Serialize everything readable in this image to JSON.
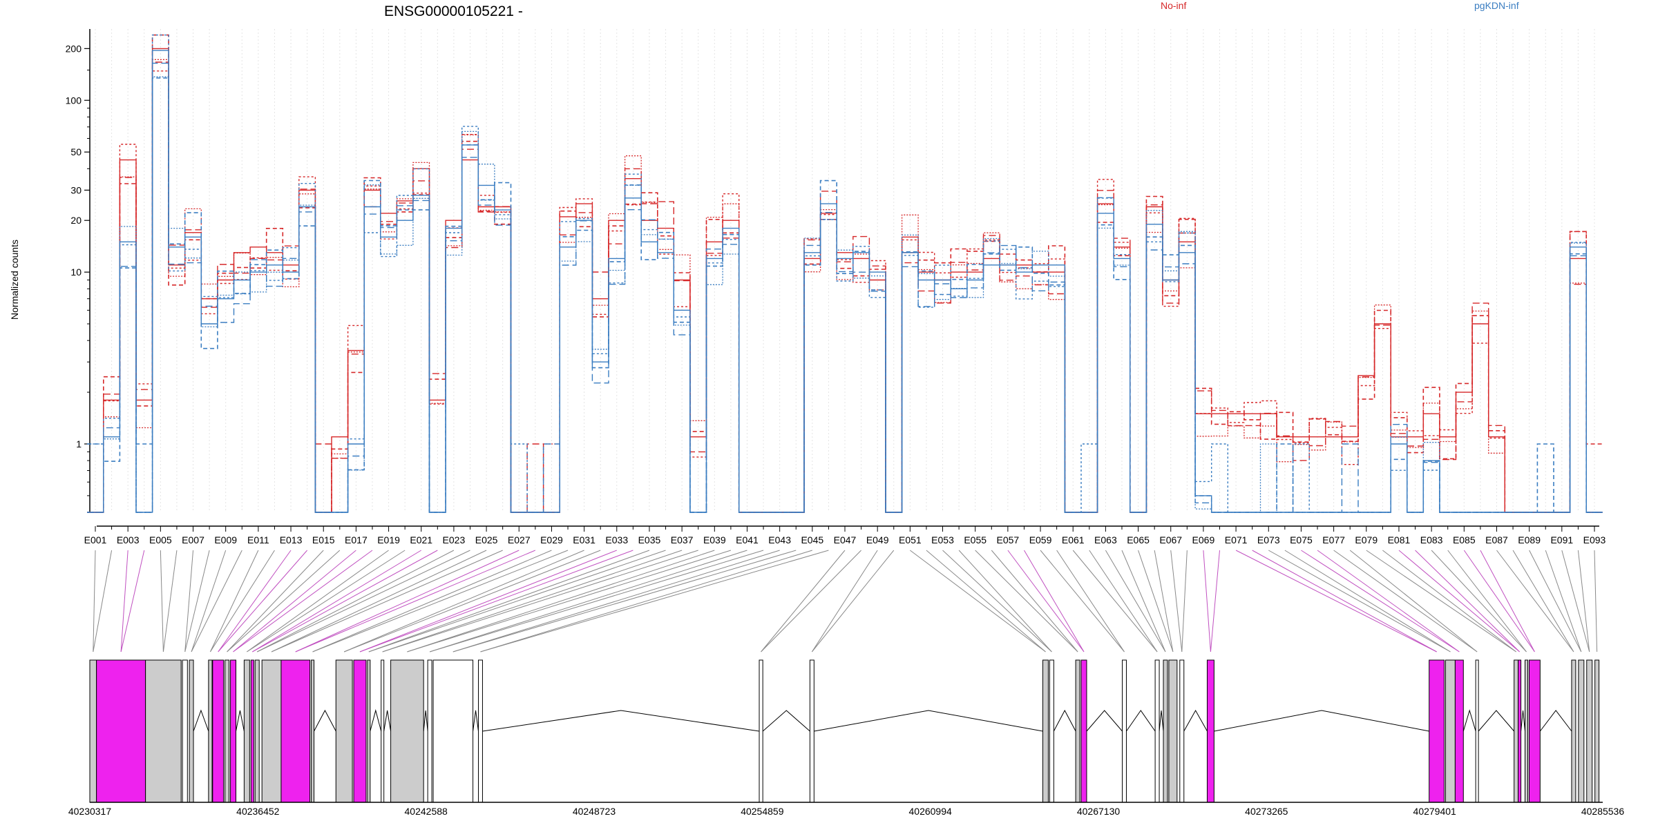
{
  "title": "ENSG00000105221 -",
  "chart_data": {
    "type": "line",
    "title": "ENSG00000105221 -",
    "ylabel": "Normalized counts",
    "y_scale": "log",
    "ylim": [
      0.4,
      260
    ],
    "yticks": [
      1,
      10,
      20,
      30,
      50,
      100,
      200
    ],
    "grid": "vertical dotted lines per exon",
    "legend": [
      {
        "name": "No-inf",
        "color": "#d62728"
      },
      {
        "name": "pgKDN-inf",
        "color": "#3a7dc1"
      }
    ],
    "exon_labels": [
      "E001",
      "E003",
      "E005",
      "E007",
      "E009",
      "E011",
      "E013",
      "E015",
      "E017",
      "E019",
      "E021",
      "E023",
      "E025",
      "E027",
      "E029",
      "E031",
      "E033",
      "E035",
      "E037",
      "E039",
      "E041",
      "E043",
      "E045",
      "E047",
      "E049",
      "E051",
      "E053",
      "E055",
      "E057",
      "E059",
      "E061",
      "E063",
      "E065",
      "E067",
      "E069",
      "E071",
      "E073",
      "E075",
      "E077",
      "E079",
      "E081",
      "E083",
      "E085",
      "E087",
      "E089",
      "E091",
      "E093"
    ],
    "exon_count": 93,
    "no_inf_mean": [
      0.4,
      1.8,
      45,
      1.8,
      200,
      11,
      17,
      7,
      9,
      13,
      14,
      13,
      11,
      30,
      0.4,
      1.1,
      3.5,
      30,
      22,
      26,
      40,
      1.8,
      20,
      45,
      24,
      24,
      0.4,
      0.4,
      0.4,
      21,
      25,
      7,
      20,
      35,
      20,
      18,
      9,
      1.1,
      15,
      20,
      0.4,
      0.4,
      0.4,
      0.4,
      12,
      22,
      13,
      12,
      9,
      0.4,
      16,
      10,
      9,
      10,
      10,
      12,
      11,
      11,
      10,
      10,
      0.4,
      0.4,
      25,
      14,
      0.4,
      24,
      9,
      15,
      1.5,
      1.5,
      1.5,
      1.5,
      1.5,
      1.1,
      1.1,
      1.1,
      1.1,
      1.1,
      2.5,
      5,
      1.1,
      1.1,
      1.5,
      1.1,
      2,
      5,
      1.1,
      0.4,
      0.4,
      0.4,
      0.4,
      12,
      0.4
    ],
    "pgkdn_inf_mean": [
      0.4,
      1.1,
      15,
      0.4,
      195,
      14,
      16,
      5,
      7,
      9,
      10,
      11,
      10,
      24,
      0.4,
      0.4,
      1,
      24,
      16,
      20,
      28,
      0.4,
      18,
      55,
      32,
      23,
      0.4,
      0.4,
      0.4,
      14,
      20,
      3,
      12,
      27,
      15,
      13,
      6,
      0.4,
      12,
      18,
      0.4,
      0.4,
      0.4,
      0.4,
      13,
      25,
      12,
      13,
      10,
      0.4,
      13,
      9,
      9,
      8,
      9,
      11,
      11,
      10,
      11,
      11,
      0.4,
      0.4,
      22,
      12,
      0.4,
      19,
      9,
      13,
      0.5,
      0.4,
      0.4,
      0.4,
      0.4,
      0.4,
      0.4,
      0.4,
      0.4,
      0.4,
      0.4,
      0.4,
      1,
      0.4,
      0.8,
      0.4,
      0.4,
      0.4,
      0.4,
      0.4,
      0.4,
      0.4,
      0.4,
      14,
      0.4
    ]
  },
  "genomic_axis": {
    "ticks": [
      "40230317",
      "40236452",
      "40242588",
      "40248723",
      "40254859",
      "40260994",
      "40267130",
      "40273265",
      "40279401",
      "40285536"
    ],
    "start": 40230317,
    "end": 40285536
  },
  "gene_model": {
    "blocks": [
      {
        "start": 40230317,
        "end": 40230560,
        "fill": "#cccccc"
      },
      {
        "start": 40230560,
        "end": 40232350,
        "fill": "#ee22ee"
      },
      {
        "start": 40232350,
        "end": 40233650,
        "fill": "#cccccc"
      },
      {
        "start": 40233700,
        "end": 40233880,
        "fill": "#ffffff"
      },
      {
        "start": 40233950,
        "end": 40234100,
        "fill": "#cccccc"
      },
      {
        "start": 40234650,
        "end": 40234780,
        "fill": "#cccccc"
      },
      {
        "start": 40234800,
        "end": 40235200,
        "fill": "#ee22ee"
      },
      {
        "start": 40235250,
        "end": 40235400,
        "fill": "#cccccc"
      },
      {
        "start": 40235450,
        "end": 40235650,
        "fill": "#ee22ee"
      },
      {
        "start": 40235950,
        "end": 40236150,
        "fill": "#cccccc"
      },
      {
        "start": 40236200,
        "end": 40236300,
        "fill": "#ee22ee"
      },
      {
        "start": 40236350,
        "end": 40236500,
        "fill": "#cccccc"
      },
      {
        "start": 40236600,
        "end": 40237300,
        "fill": "#cccccc"
      },
      {
        "start": 40237300,
        "end": 40238350,
        "fill": "#ee22ee"
      },
      {
        "start": 40238400,
        "end": 40238500,
        "fill": "#cccccc"
      },
      {
        "start": 40239300,
        "end": 40239900,
        "fill": "#cccccc"
      },
      {
        "start": 40239950,
        "end": 40240400,
        "fill": "#ee22ee"
      },
      {
        "start": 40240450,
        "end": 40240550,
        "fill": "#cccccc"
      },
      {
        "start": 40240950,
        "end": 40241050,
        "fill": "#ffffff"
      },
      {
        "start": 40241300,
        "end": 40242500,
        "fill": "#cccccc"
      },
      {
        "start": 40242650,
        "end": 40242800,
        "fill": "#ffffff"
      },
      {
        "start": 40242850,
        "end": 40244300,
        "fill": "#ffffff"
      },
      {
        "start": 40244500,
        "end": 40244650,
        "fill": "#ffffff"
      },
      {
        "start": 40254750,
        "end": 40254880,
        "fill": "#ffffff"
      },
      {
        "start": 40256600,
        "end": 40256750,
        "fill": "#ffffff"
      },
      {
        "start": 40265100,
        "end": 40265300,
        "fill": "#cccccc"
      },
      {
        "start": 40265350,
        "end": 40265500,
        "fill": "#ffffff"
      },
      {
        "start": 40266300,
        "end": 40266450,
        "fill": "#cccccc"
      },
      {
        "start": 40266500,
        "end": 40266700,
        "fill": "#ee22ee"
      },
      {
        "start": 40268000,
        "end": 40268150,
        "fill": "#ffffff"
      },
      {
        "start": 40269200,
        "end": 40269350,
        "fill": "#ffffff"
      },
      {
        "start": 40269500,
        "end": 40269650,
        "fill": "#cccccc"
      },
      {
        "start": 40269700,
        "end": 40270000,
        "fill": "#cccccc"
      },
      {
        "start": 40270100,
        "end": 40270250,
        "fill": "#ffffff"
      },
      {
        "start": 40271100,
        "end": 40271350,
        "fill": "#ee22ee"
      },
      {
        "start": 40279200,
        "end": 40279750,
        "fill": "#ee22ee"
      },
      {
        "start": 40279800,
        "end": 40280150,
        "fill": "#cccccc"
      },
      {
        "start": 40280150,
        "end": 40280450,
        "fill": "#ee22ee"
      },
      {
        "start": 40280900,
        "end": 40281000,
        "fill": "#ffffff"
      },
      {
        "start": 40282300,
        "end": 40282450,
        "fill": "#cccccc"
      },
      {
        "start": 40282450,
        "end": 40282550,
        "fill": "#ee22ee"
      },
      {
        "start": 40282700,
        "end": 40282800,
        "fill": "#cccccc"
      },
      {
        "start": 40282850,
        "end": 40283250,
        "fill": "#ee22ee"
      },
      {
        "start": 40284400,
        "end": 40284550,
        "fill": "#cccccc"
      },
      {
        "start": 40284650,
        "end": 40284850,
        "fill": "#cccccc"
      },
      {
        "start": 40284950,
        "end": 40285150,
        "fill": "#cccccc"
      },
      {
        "start": 40285250,
        "end": 40285400,
        "fill": "#cccccc"
      }
    ]
  },
  "colors": {
    "no_inf": "#d62728",
    "pgkdn_inf": "#3a7dc1",
    "exon_link": "#888888",
    "exon_link_highlight": "#c050c0",
    "alt_exon": "#ee22ee",
    "const_exon": "#cccccc"
  }
}
